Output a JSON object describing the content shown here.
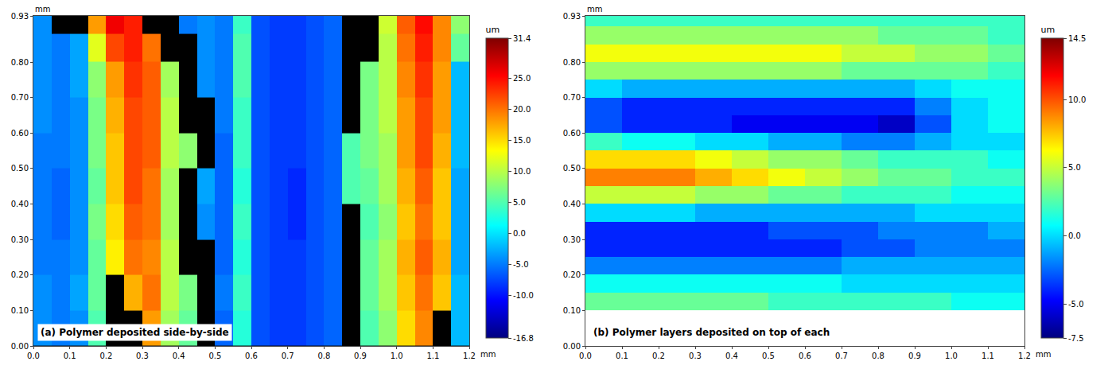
{
  "chart_data": [
    {
      "type": "heatmap",
      "annotation": "(a) Polymer deposited side-by-side",
      "xlabel": "mm",
      "ylabel": "mm",
      "xlim": [
        0,
        1.2
      ],
      "ylim": [
        0,
        0.93
      ],
      "xticks": [
        {
          "value": 0,
          "label": "0.0"
        },
        0.1,
        0.2,
        0.3,
        0.4,
        0.5,
        0.6,
        0.7,
        0.8,
        0.9,
        {
          "value": 1,
          "label": "1.0"
        },
        1.1,
        1.2
      ],
      "yticks": [
        {
          "value": 0,
          "label": "0.00"
        },
        {
          "value": 0.1,
          "label": "0.10"
        },
        {
          "value": 0.2,
          "label": "0.20"
        },
        {
          "value": 0.3,
          "label": "0.30"
        },
        {
          "value": 0.4,
          "label": "0.40"
        },
        {
          "value": 0.5,
          "label": "0.50"
        },
        {
          "value": 0.6,
          "label": "0.60"
        },
        {
          "value": 0.7,
          "label": "0.70"
        },
        {
          "value": 0.8,
          "label": "0.80"
        },
        0.93
      ],
      "x": [
        0.025,
        0.075,
        0.125,
        0.175,
        0.225,
        0.275,
        0.325,
        0.375,
        0.425,
        0.475,
        0.525,
        0.575,
        0.625,
        0.675,
        0.725,
        0.775,
        0.825,
        0.875,
        0.925,
        0.975,
        1.025,
        1.075,
        1.125,
        1.175
      ],
      "y": [
        0.05,
        0.15,
        0.25,
        0.35,
        0.45,
        0.55,
        0.65,
        0.75,
        0.85,
        0.91
      ],
      "cells": [
        [
          -4,
          -5,
          -4,
          5,
          null,
          null,
          18,
          9,
          6,
          null,
          -6,
          3,
          -7,
          -8,
          -8,
          -7,
          -6,
          null,
          5,
          8,
          15,
          19,
          null,
          -2
        ],
        [
          -4,
          -5,
          -3,
          6,
          null,
          17,
          20,
          10,
          7,
          null,
          -5,
          4,
          -7,
          -8,
          -8,
          -7,
          -6,
          null,
          6,
          9,
          16,
          20,
          16,
          -2
        ],
        [
          -5,
          -5,
          -4,
          6,
          14,
          20,
          19,
          10,
          null,
          null,
          -6,
          3,
          -7,
          -8,
          -8,
          -7,
          -6,
          null,
          6,
          9,
          17,
          21,
          17,
          -3
        ],
        [
          -5,
          -6,
          -4,
          7,
          15,
          21,
          20,
          9,
          null,
          -4,
          -6,
          4,
          -7,
          -8,
          -9,
          -7,
          -6,
          null,
          5,
          8,
          16,
          20,
          16,
          -3
        ],
        [
          -5,
          -6,
          -4,
          6,
          16,
          22,
          20,
          9,
          null,
          -3,
          -6,
          3,
          -7,
          -8,
          -9,
          -7,
          -6,
          5,
          6,
          9,
          17,
          21,
          16,
          -3
        ],
        [
          -5,
          -5,
          -4,
          7,
          16,
          22,
          21,
          10,
          8,
          null,
          -6,
          4,
          -7,
          -8,
          -8,
          -7,
          -6,
          5,
          7,
          9,
          18,
          22,
          17,
          -2
        ],
        [
          -4,
          -5,
          -4,
          7,
          17,
          22,
          21,
          10,
          null,
          null,
          -5,
          4,
          -7,
          -8,
          -8,
          -7,
          -6,
          null,
          7,
          10,
          18,
          22,
          18,
          -2
        ],
        [
          -4,
          -5,
          -3,
          8,
          18,
          23,
          21,
          9,
          null,
          -4,
          -5,
          5,
          -7,
          -8,
          -8,
          -7,
          -6,
          null,
          7,
          10,
          19,
          23,
          18,
          -2
        ],
        [
          -4,
          -5,
          -3,
          12,
          22,
          24,
          20,
          null,
          null,
          -4,
          -5,
          5,
          -7,
          -8,
          -8,
          -7,
          -6,
          null,
          null,
          10,
          20,
          24,
          19,
          6
        ],
        [
          -4,
          null,
          null,
          18,
          26,
          24,
          null,
          null,
          -5,
          -4,
          -5,
          4,
          -7,
          -8,
          -8,
          -7,
          -6,
          null,
          null,
          11,
          21,
          25,
          19,
          8
        ]
      ],
      "colorbar": {
        "title": "um",
        "range": [
          -16.8,
          31.4
        ],
        "ticks": [
          {
            "value": 31.4,
            "label": "31.4"
          },
          {
            "value": 25,
            "label": "25.0"
          },
          {
            "value": 20,
            "label": "20.0"
          },
          {
            "value": 15,
            "label": "15.0"
          },
          {
            "value": 10,
            "label": "10.0"
          },
          {
            "value": 5,
            "label": "5.0"
          },
          {
            "value": 0,
            "label": "0.0"
          },
          {
            "value": -5,
            "label": "-5.0"
          },
          {
            "value": -10,
            "label": "-10.0"
          },
          {
            "value": -16.8,
            "label": "-16.8"
          }
        ]
      }
    },
    {
      "type": "heatmap",
      "annotation": "(b) Polymer layers deposited on top of each",
      "xlabel": "mm",
      "ylabel": "mm",
      "xlim": [
        0,
        1.2
      ],
      "ylim": [
        0,
        0.93
      ],
      "xticks": [
        {
          "value": 0,
          "label": "0.0"
        },
        0.1,
        0.2,
        0.3,
        0.4,
        0.5,
        0.6,
        0.7,
        0.8,
        0.9,
        {
          "value": 1,
          "label": "1.0"
        },
        1.1,
        1.2
      ],
      "yticks": [
        {
          "value": 0,
          "label": "0.00"
        },
        {
          "value": 0.1,
          "label": "0.10"
        },
        {
          "value": 0.2,
          "label": "0.20"
        },
        {
          "value": 0.3,
          "label": "0.30"
        },
        {
          "value": 0.4,
          "label": "0.40"
        },
        {
          "value": 0.5,
          "label": "0.50"
        },
        {
          "value": 0.6,
          "label": "0.60"
        },
        {
          "value": 0.7,
          "label": "0.70"
        },
        {
          "value": 0.8,
          "label": "0.80"
        },
        0.93
      ],
      "x": [
        0.05,
        0.15,
        0.25,
        0.35,
        0.45,
        0.55,
        0.65,
        0.75,
        0.85,
        0.95,
        1.05,
        1.15
      ],
      "y": [
        0.125,
        0.175,
        0.225,
        0.275,
        0.325,
        0.375,
        0.425,
        0.475,
        0.525,
        0.575,
        0.625,
        0.675,
        0.725,
        0.775,
        0.825,
        0.875,
        0.925
      ],
      "cells": [
        [
          3,
          3,
          3,
          3,
          3,
          2,
          2,
          2,
          2,
          2,
          1,
          1
        ],
        [
          1,
          1,
          1,
          1,
          1,
          1,
          1,
          0,
          0,
          0,
          0,
          0
        ],
        [
          -2,
          -2,
          -2,
          -2,
          -2,
          -2,
          -2,
          -1,
          -1,
          -1,
          -1,
          -1
        ],
        [
          -4,
          -4,
          -4,
          -4,
          -4,
          -4,
          -4,
          -3,
          -3,
          -2,
          -2,
          -2
        ],
        [
          -4,
          -4,
          -4,
          -4,
          -4,
          -3,
          -3,
          -3,
          -2,
          -2,
          -2,
          -1
        ],
        [
          0,
          0,
          0,
          -1,
          -1,
          -1,
          -1,
          -1,
          -1,
          0,
          0,
          0
        ],
        [
          5,
          5,
          5,
          4,
          4,
          3,
          3,
          2,
          2,
          2,
          1,
          1
        ],
        [
          9,
          9,
          9,
          8,
          7,
          6,
          5,
          4,
          3,
          3,
          2,
          2
        ],
        [
          7,
          7,
          7,
          6,
          5,
          4,
          4,
          3,
          2,
          2,
          2,
          1
        ],
        [
          2,
          1,
          1,
          0,
          0,
          -1,
          -1,
          -2,
          -2,
          -1,
          0,
          0
        ],
        [
          -3,
          -4,
          -4,
          -4,
          -5,
          -5,
          -5,
          -5,
          -6,
          -3,
          0,
          1
        ],
        [
          -3,
          -4,
          -4,
          -4,
          -4,
          -4,
          -4,
          -4,
          -4,
          -2,
          0,
          1
        ],
        [
          0,
          -1,
          -1,
          -1,
          -1,
          -1,
          -1,
          -1,
          -1,
          0,
          1,
          1
        ],
        [
          4,
          4,
          4,
          4,
          4,
          4,
          4,
          3,
          3,
          3,
          3,
          2
        ],
        [
          6,
          6,
          6,
          6,
          6,
          6,
          6,
          5,
          5,
          4,
          4,
          3
        ],
        [
          4,
          4,
          4,
          4,
          4,
          4,
          4,
          4,
          3,
          3,
          3,
          2
        ],
        [
          2,
          2,
          2,
          2,
          2,
          2,
          2,
          2,
          2,
          2,
          2,
          2
        ]
      ],
      "colorbar": {
        "title": "um",
        "range": [
          -7.5,
          14.5
        ],
        "ticks": [
          {
            "value": 14.5,
            "label": "14.5"
          },
          {
            "value": 10,
            "label": "10.0"
          },
          {
            "value": 5,
            "label": "5.0"
          },
          {
            "value": 0,
            "label": "0.0"
          },
          {
            "value": -5,
            "label": "-5.0"
          },
          {
            "value": -7.5,
            "label": "-7.5"
          }
        ]
      }
    }
  ]
}
